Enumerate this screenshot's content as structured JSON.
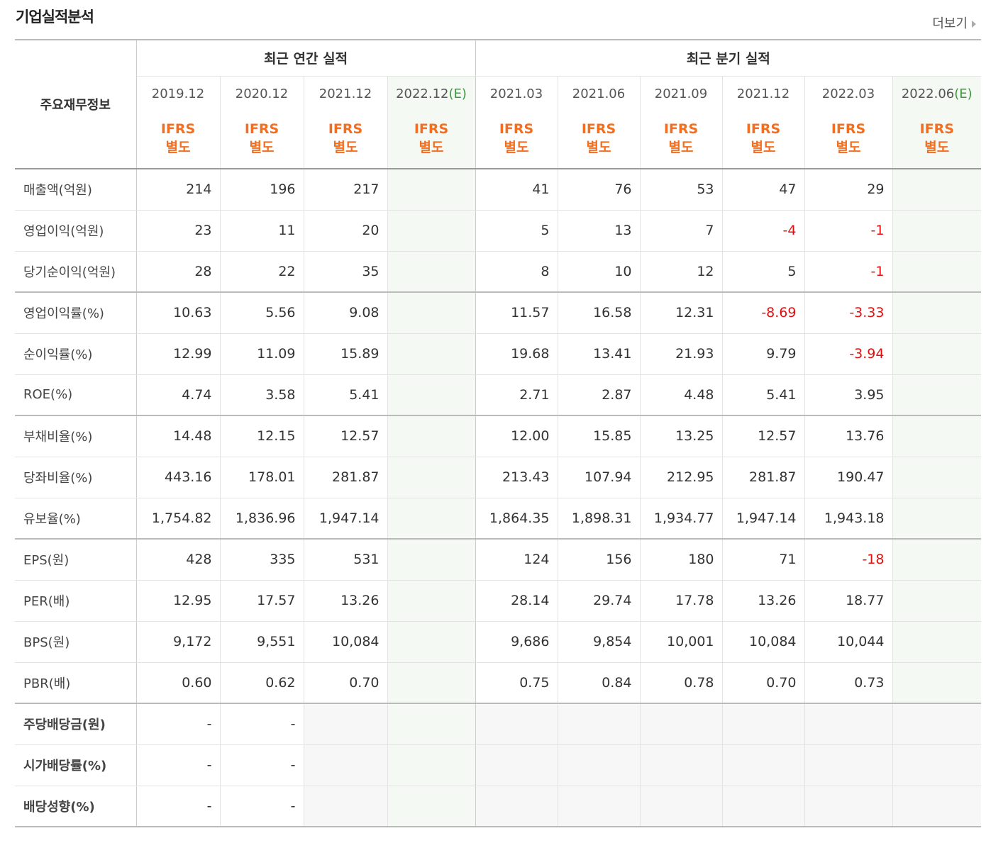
{
  "header": {
    "title": "기업실적분석",
    "more_label": "더보기"
  },
  "table": {
    "row_header_label": "주요재무정보",
    "group_annual": "최근 연간 실적",
    "group_quarter": "최근 분기 실적",
    "periods": [
      {
        "date": "2019.12",
        "est": ""
      },
      {
        "date": "2020.12",
        "est": ""
      },
      {
        "date": "2021.12",
        "est": ""
      },
      {
        "date": "2022.12",
        "est": "(E)"
      },
      {
        "date": "2021.03",
        "est": ""
      },
      {
        "date": "2021.06",
        "est": ""
      },
      {
        "date": "2021.09",
        "est": ""
      },
      {
        "date": "2021.12",
        "est": ""
      },
      {
        "date": "2022.03",
        "est": ""
      },
      {
        "date": "2022.06",
        "est": "(E)"
      }
    ],
    "ifrs_line1": "IFRS",
    "ifrs_line2": "별도",
    "rows": [
      {
        "label": "매출액(억원)",
        "values": [
          "214",
          "196",
          "217",
          "",
          "41",
          "76",
          "53",
          "47",
          "29",
          ""
        ]
      },
      {
        "label": "영업이익(억원)",
        "values": [
          "23",
          "11",
          "20",
          "",
          "5",
          "13",
          "7",
          "-4",
          "-1",
          ""
        ]
      },
      {
        "label": "당기순이익(억원)",
        "values": [
          "28",
          "22",
          "35",
          "",
          "8",
          "10",
          "12",
          "5",
          "-1",
          ""
        ]
      },
      {
        "label": "영업이익률(%)",
        "values": [
          "10.63",
          "5.56",
          "9.08",
          "",
          "11.57",
          "16.58",
          "12.31",
          "-8.69",
          "-3.33",
          ""
        ]
      },
      {
        "label": "순이익률(%)",
        "values": [
          "12.99",
          "11.09",
          "15.89",
          "",
          "19.68",
          "13.41",
          "21.93",
          "9.79",
          "-3.94",
          ""
        ]
      },
      {
        "label": "ROE(%)",
        "values": [
          "4.74",
          "3.58",
          "5.41",
          "",
          "2.71",
          "2.87",
          "4.48",
          "5.41",
          "3.95",
          ""
        ]
      },
      {
        "label": "부채비율(%)",
        "values": [
          "14.48",
          "12.15",
          "12.57",
          "",
          "12.00",
          "15.85",
          "13.25",
          "12.57",
          "13.76",
          ""
        ]
      },
      {
        "label": "당좌비율(%)",
        "values": [
          "443.16",
          "178.01",
          "281.87",
          "",
          "213.43",
          "107.94",
          "212.95",
          "281.87",
          "190.47",
          ""
        ]
      },
      {
        "label": "유보율(%)",
        "values": [
          "1,754.82",
          "1,836.96",
          "1,947.14",
          "",
          "1,864.35",
          "1,898.31",
          "1,934.77",
          "1,947.14",
          "1,943.18",
          ""
        ]
      },
      {
        "label": "EPS(원)",
        "values": [
          "428",
          "335",
          "531",
          "",
          "124",
          "156",
          "180",
          "71",
          "-18",
          ""
        ]
      },
      {
        "label": "PER(배)",
        "values": [
          "12.95",
          "17.57",
          "13.26",
          "",
          "28.14",
          "29.74",
          "17.78",
          "13.26",
          "18.77",
          ""
        ]
      },
      {
        "label": "BPS(원)",
        "values": [
          "9,172",
          "9,551",
          "10,084",
          "",
          "9,686",
          "9,854",
          "10,001",
          "10,084",
          "10,044",
          ""
        ]
      },
      {
        "label": "PBR(배)",
        "values": [
          "0.60",
          "0.62",
          "0.70",
          "",
          "0.75",
          "0.84",
          "0.78",
          "0.70",
          "0.73",
          ""
        ]
      },
      {
        "label": "주당배당금(원)",
        "values": [
          "-",
          "-",
          "",
          "",
          "",
          "",
          "",
          "",
          "",
          ""
        ]
      },
      {
        "label": "시가배당률(%)",
        "values": [
          "-",
          "-",
          "",
          "",
          "",
          "",
          "",
          "",
          "",
          ""
        ]
      },
      {
        "label": "배당성향(%)",
        "values": [
          "-",
          "-",
          "",
          "",
          "",
          "",
          "",
          "",
          "",
          ""
        ]
      }
    ]
  }
}
